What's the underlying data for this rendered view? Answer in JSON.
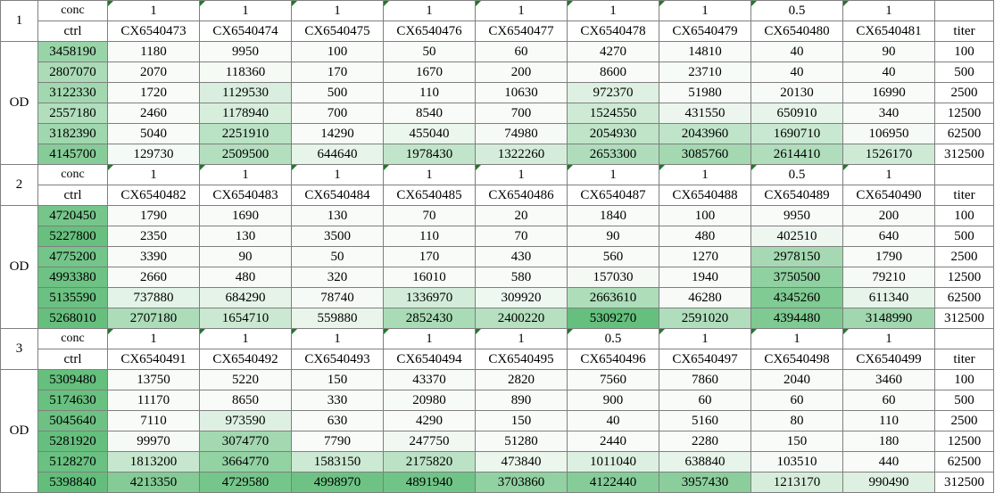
{
  "sheet": {
    "od_label": "OD",
    "conc_label": "conc",
    "ctrl_label": "ctrl",
    "titer_label": "titer",
    "titers": [
      "100",
      "500",
      "2500",
      "12500",
      "62500",
      "312500"
    ]
  },
  "groups": [
    {
      "number": "1",
      "concs": [
        "1",
        "1",
        "1",
        "1",
        "1",
        "1",
        "1",
        "0.5",
        "1"
      ],
      "compounds": [
        "CX6540473",
        "CX6540474",
        "CX6540475",
        "CX6540476",
        "CX6540477",
        "CX6540478",
        "CX6540479",
        "CX6540480",
        "CX6540481"
      ],
      "ctrl": [
        "3458190",
        "2807070",
        "3122330",
        "2557180",
        "3182390",
        "4145700"
      ],
      "rows": [
        [
          "1180",
          "9950",
          "100",
          "50",
          "60",
          "4270",
          "14810",
          "40",
          "90"
        ],
        [
          "2070",
          "118360",
          "170",
          "1670",
          "200",
          "8600",
          "23710",
          "40",
          "40"
        ],
        [
          "1720",
          "1129530",
          "500",
          "110",
          "10630",
          "972370",
          "51980",
          "20130",
          "16990"
        ],
        [
          "2460",
          "1178940",
          "700",
          "8540",
          "700",
          "1524550",
          "431550",
          "650910",
          "340"
        ],
        [
          "5040",
          "2251910",
          "14290",
          "455040",
          "74980",
          "2054930",
          "2043960",
          "1690710",
          "106950"
        ],
        [
          "129730",
          "2509500",
          "644640",
          "1978430",
          "1322260",
          "2653300",
          "3085760",
          "2614410",
          "1526170"
        ]
      ]
    },
    {
      "number": "2",
      "concs": [
        "1",
        "1",
        "1",
        "1",
        "1",
        "1",
        "1",
        "0.5",
        "1"
      ],
      "compounds": [
        "CX6540482",
        "CX6540483",
        "CX6540484",
        "CX6540485",
        "CX6540486",
        "CX6540487",
        "CX6540488",
        "CX6540489",
        "CX6540490"
      ],
      "ctrl": [
        "4720450",
        "5227800",
        "4775200",
        "4993380",
        "5135590",
        "5268010"
      ],
      "rows": [
        [
          "1790",
          "1690",
          "130",
          "70",
          "20",
          "1840",
          "100",
          "9950",
          "200"
        ],
        [
          "2350",
          "130",
          "3500",
          "110",
          "70",
          "90",
          "480",
          "402510",
          "640"
        ],
        [
          "3390",
          "90",
          "50",
          "170",
          "430",
          "560",
          "1270",
          "2978150",
          "1790"
        ],
        [
          "2660",
          "480",
          "320",
          "16010",
          "580",
          "157030",
          "1940",
          "3750500",
          "79210"
        ],
        [
          "737880",
          "684290",
          "78740",
          "1336970",
          "309920",
          "2663610",
          "46280",
          "4345260",
          "611340"
        ],
        [
          "2707180",
          "1654710",
          "559880",
          "2852430",
          "2400220",
          "5309270",
          "2591020",
          "4394480",
          "3148990"
        ]
      ]
    },
    {
      "number": "3",
      "concs": [
        "1",
        "1",
        "1",
        "1",
        "1",
        "0.5",
        "1",
        "1",
        "1"
      ],
      "compounds": [
        "CX6540491",
        "CX6540492",
        "CX6540493",
        "CX6540494",
        "CX6540495",
        "CX6540496",
        "CX6540497",
        "CX6540498",
        "CX6540499"
      ],
      "ctrl": [
        "5309480",
        "5174630",
        "5045640",
        "5281920",
        "5128270",
        "5398840"
      ],
      "rows": [
        [
          "13750",
          "5220",
          "150",
          "43370",
          "2820",
          "7560",
          "7860",
          "2040",
          "3460"
        ],
        [
          "11170",
          "8650",
          "330",
          "20980",
          "890",
          "900",
          "60",
          "60",
          "60"
        ],
        [
          "7110",
          "973590",
          "630",
          "4290",
          "150",
          "40",
          "5160",
          "80",
          "110"
        ],
        [
          "99970",
          "3074770",
          "7790",
          "247750",
          "51280",
          "2440",
          "2280",
          "150",
          "180"
        ],
        [
          "1813200",
          "3664770",
          "1583150",
          "2175820",
          "473840",
          "1011040",
          "638840",
          "103510",
          "440"
        ],
        [
          "4213350",
          "4729580",
          "4998970",
          "4891940",
          "3703860",
          "4122440",
          "3957430",
          "1213170",
          "990490"
        ]
      ]
    }
  ]
}
